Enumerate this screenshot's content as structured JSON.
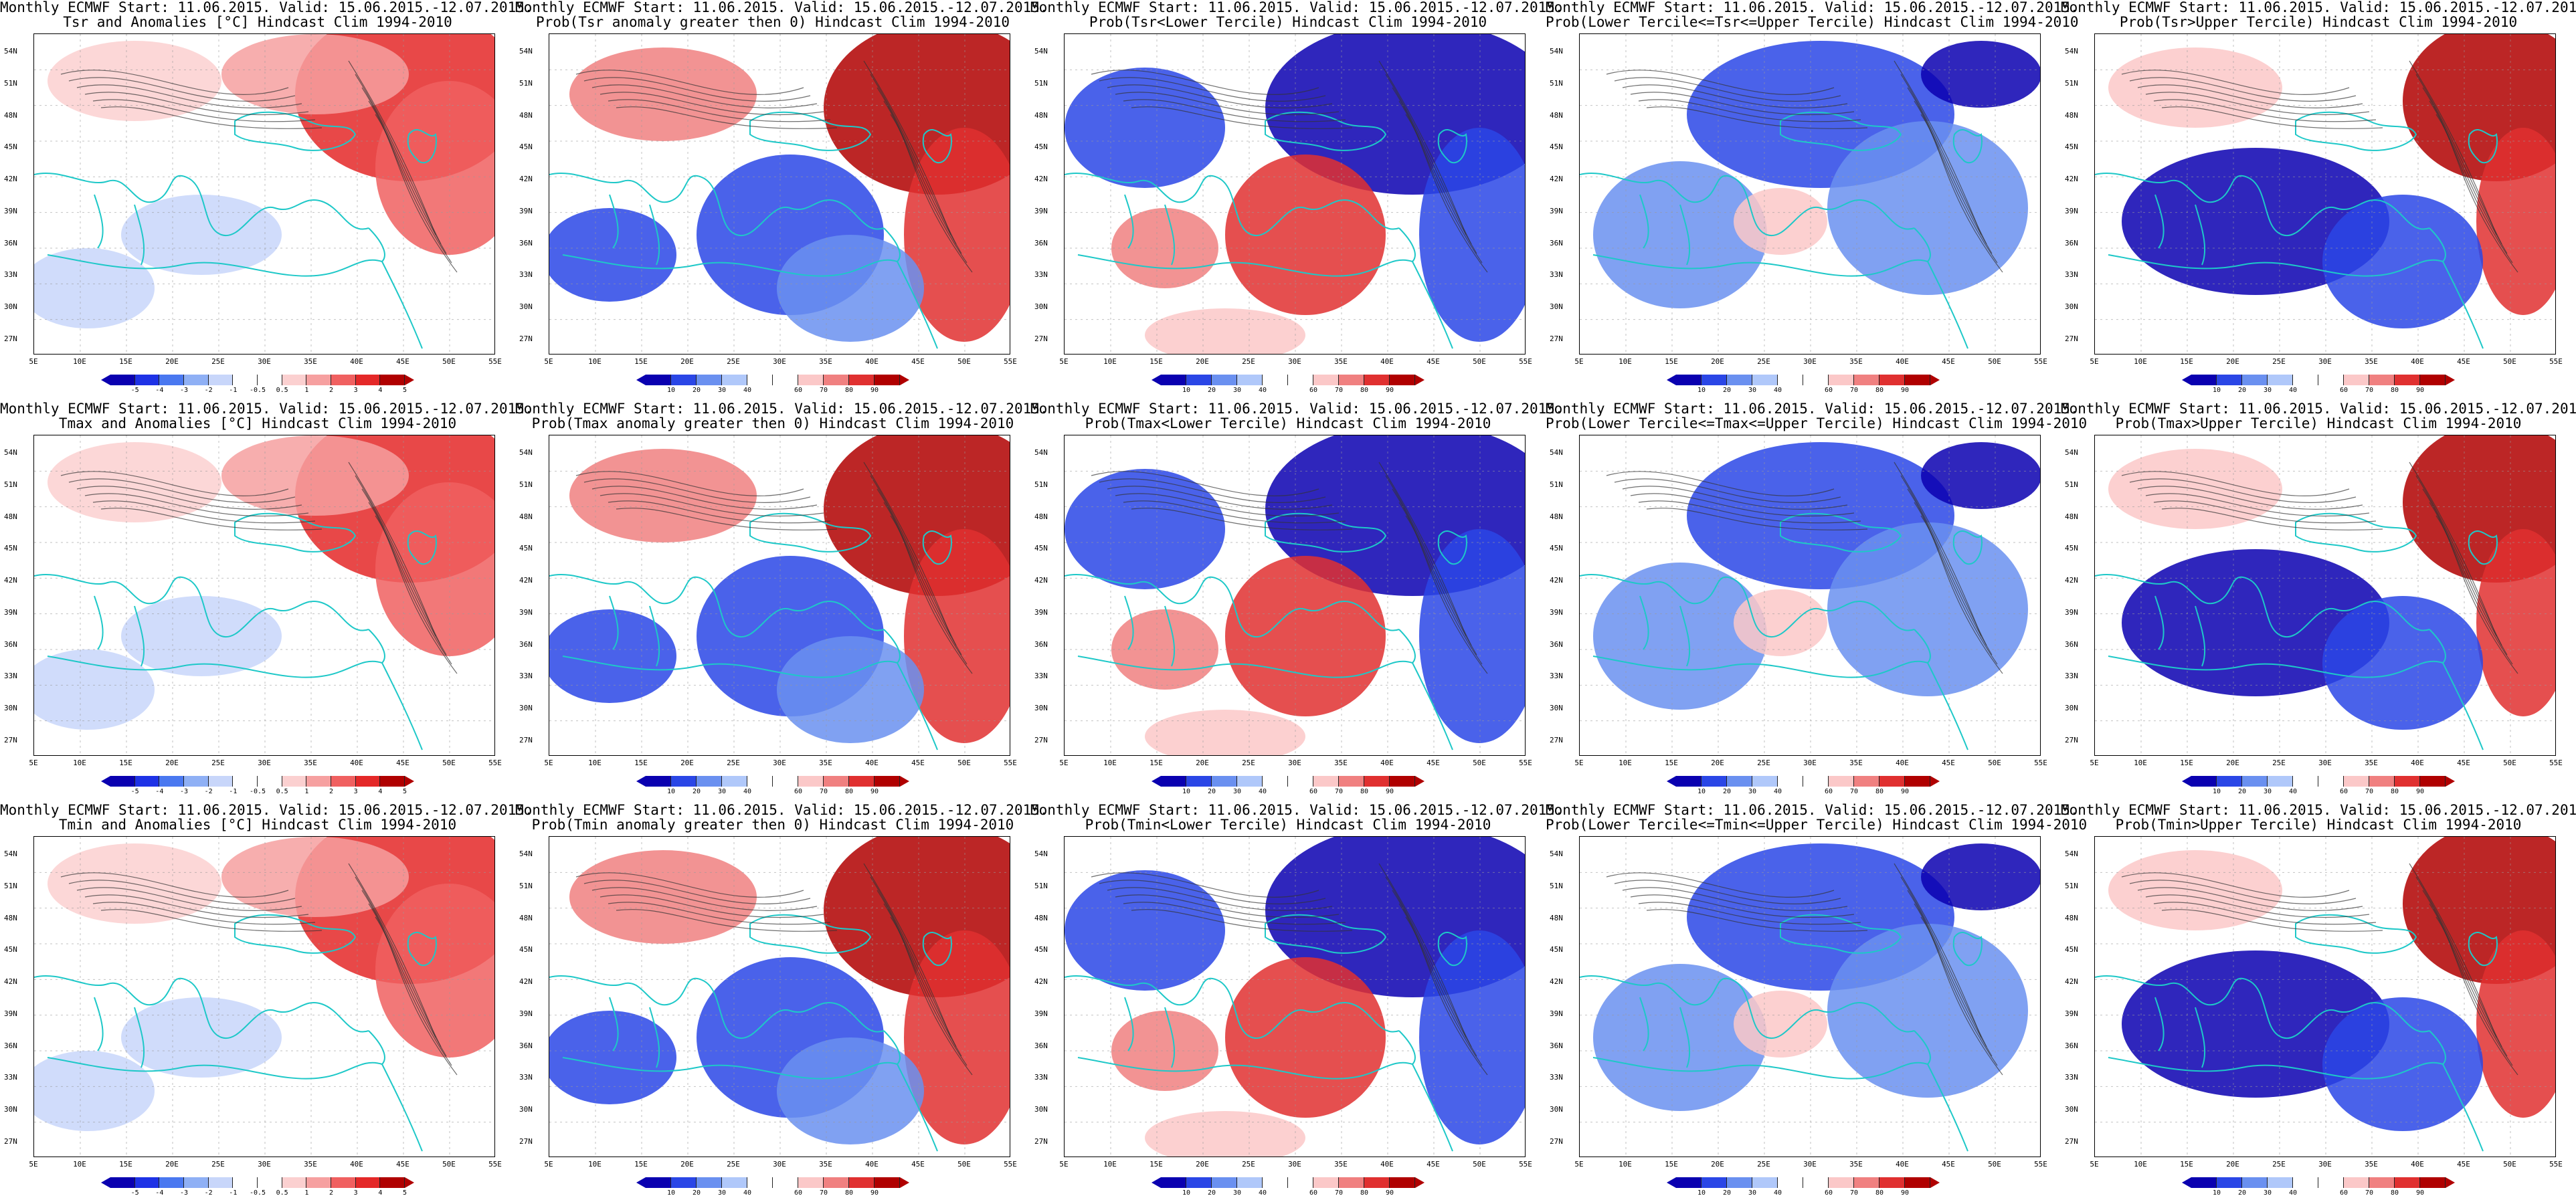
{
  "header_line": "Monthly ECMWF Start: 11.06.2015. Valid: 15.06.2015.-12.07.2015.",
  "lat_labels": [
    "54N",
    "51N",
    "48N",
    "45N",
    "42N",
    "39N",
    "36N",
    "33N",
    "30N",
    "27N"
  ],
  "lon_labels": [
    "5E",
    "10E",
    "15E",
    "20E",
    "25E",
    "30E",
    "35E",
    "40E",
    "45E",
    "50E",
    "55E"
  ],
  "colors": {
    "coast": "#1ec8c8",
    "contour": "#333333",
    "anomaly_scale": [
      "#0a00b0",
      "#1e32e6",
      "#4a78f0",
      "#8fb0f5",
      "#c8d6fa",
      "#ffffff",
      "#ffffff",
      "#fbd0d0",
      "#f6a0a0",
      "#f06060",
      "#e42828",
      "#b00000"
    ],
    "prob_scale": [
      "#0a00b0",
      "#2a46e6",
      "#6a90f0",
      "#b0c8fa",
      "#ffffff",
      "#ffffff",
      "#fbc8c8",
      "#f08080",
      "#e03030",
      "#b00000"
    ]
  },
  "colorbars": {
    "anomaly_ticks": [
      "-5",
      "-4",
      "-3",
      "-2",
      "-1",
      "-0.5",
      "0.5",
      "1",
      "2",
      "3",
      "4",
      "5"
    ],
    "prob_ticks": [
      "10",
      "20",
      "30",
      "40",
      "60",
      "70",
      "80",
      "90"
    ]
  },
  "panels": [
    {
      "row": 0,
      "col": 0,
      "title": "Tsr and Anomalies [°C] Hindcast Clim 1994-2010",
      "scale": "anomaly",
      "pattern": "anom_warm_east"
    },
    {
      "row": 0,
      "col": 1,
      "title": "Prob(Tsr anomaly greater then 0) Hindcast Clim 1994-2010",
      "scale": "prob",
      "pattern": "prob_gt0"
    },
    {
      "row": 0,
      "col": 2,
      "title": "Prob(Tsr<Lower Tercile) Hindcast Clim 1994-2010",
      "scale": "prob",
      "pattern": "prob_lower"
    },
    {
      "row": 0,
      "col": 3,
      "title": "Prob(Lower Tercile<=Tsr<=Upper Tercile) Hindcast Clim 1994-2010",
      "scale": "prob",
      "pattern": "prob_mid"
    },
    {
      "row": 0,
      "col": 4,
      "title": "Prob(Tsr>Upper Tercile) Hindcast Clim 1994-2010",
      "scale": "prob",
      "pattern": "prob_upper"
    },
    {
      "row": 1,
      "col": 0,
      "title": "Tmax and Anomalies [°C] Hindcast Clim 1994-2010",
      "scale": "anomaly",
      "pattern": "anom_warm_east"
    },
    {
      "row": 1,
      "col": 1,
      "title": "Prob(Tmax anomaly greater then 0) Hindcast Clim 1994-2010",
      "scale": "prob",
      "pattern": "prob_gt0"
    },
    {
      "row": 1,
      "col": 2,
      "title": "Prob(Tmax<Lower Tercile) Hindcast Clim 1994-2010",
      "scale": "prob",
      "pattern": "prob_lower"
    },
    {
      "row": 1,
      "col": 3,
      "title": "Prob(Lower Tercile<=Tmax<=Upper Tercile) Hindcast Clim 1994-2010",
      "scale": "prob",
      "pattern": "prob_mid"
    },
    {
      "row": 1,
      "col": 4,
      "title": "Prob(Tmax>Upper Tercile) Hindcast Clim 1994-2010",
      "scale": "prob",
      "pattern": "prob_upper"
    },
    {
      "row": 2,
      "col": 0,
      "title": "Tmin and Anomalies [°C] Hindcast Clim 1994-2010",
      "scale": "anomaly",
      "pattern": "anom_warm_east"
    },
    {
      "row": 2,
      "col": 1,
      "title": "Prob(Tmin anomaly greater then 0) Hindcast Clim 1994-2010",
      "scale": "prob",
      "pattern": "prob_gt0"
    },
    {
      "row": 2,
      "col": 2,
      "title": "Prob(Tmin<Lower Tercile) Hindcast Clim 1994-2010",
      "scale": "prob",
      "pattern": "prob_lower"
    },
    {
      "row": 2,
      "col": 3,
      "title": "Prob(Lower Tercile<=Tmin<=Upper Tercile) Hindcast Clim 1994-2010",
      "scale": "prob",
      "pattern": "prob_mid"
    },
    {
      "row": 2,
      "col": 4,
      "title": "Prob(Tmin>Upper Tercile) Hindcast Clim 1994-2010",
      "scale": "prob",
      "pattern": "prob_upper"
    }
  ]
}
